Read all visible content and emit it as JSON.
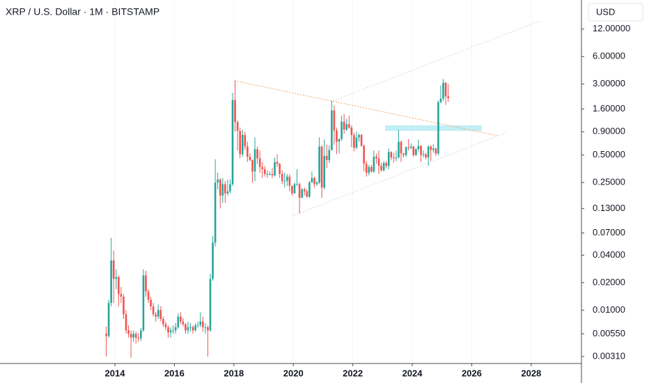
{
  "chart_data": {
    "type": "candlestick",
    "title": "XRP / U.S. Dollar · 1M · BITSTAMP",
    "currency": "USD",
    "log_scale": true,
    "up_color": "#26a69a",
    "down_color": "#ef5350",
    "xlim": [
      2010.136,
      2029.69
    ],
    "ylim": [
      0.0026,
      25
    ],
    "xticks": [
      2014,
      2016,
      2018,
      2020,
      2022,
      2024,
      2026,
      2028
    ],
    "yticks": [
      {
        "value": 12,
        "label": "12.00000"
      },
      {
        "value": 6,
        "label": "6.00000"
      },
      {
        "value": 3,
        "label": "3.00000"
      },
      {
        "value": 1.6,
        "label": "1.60000"
      },
      {
        "value": 0.9,
        "label": "0.90000"
      },
      {
        "value": 0.5,
        "label": "0.50000"
      },
      {
        "value": 0.25,
        "label": "0.25000"
      },
      {
        "value": 0.13,
        "label": "0.13000"
      },
      {
        "value": 0.07,
        "label": "0.07000"
      },
      {
        "value": 0.04,
        "label": "0.04000"
      },
      {
        "value": 0.02,
        "label": "0.02000"
      },
      {
        "value": 0.01,
        "label": "0.01000"
      },
      {
        "value": 0.0055,
        "label": "0.00550"
      },
      {
        "value": 0.0031,
        "label": "0.00310"
      }
    ],
    "x": [
      2013.708,
      2013.792,
      2013.875,
      2013.958,
      2014.042,
      2014.125,
      2014.208,
      2014.292,
      2014.375,
      2014.458,
      2014.542,
      2014.625,
      2014.708,
      2014.792,
      2014.875,
      2014.958,
      2015.042,
      2015.125,
      2015.208,
      2015.292,
      2015.375,
      2015.458,
      2015.542,
      2015.625,
      2015.708,
      2015.792,
      2015.875,
      2015.958,
      2016.042,
      2016.125,
      2016.208,
      2016.292,
      2016.375,
      2016.458,
      2016.542,
      2016.625,
      2016.708,
      2016.792,
      2016.875,
      2016.958,
      2017.042,
      2017.125,
      2017.208,
      2017.292,
      2017.375,
      2017.458,
      2017.542,
      2017.625,
      2017.708,
      2017.792,
      2017.875,
      2017.958,
      2018.042,
      2018.125,
      2018.208,
      2018.292,
      2018.375,
      2018.458,
      2018.542,
      2018.625,
      2018.708,
      2018.792,
      2018.875,
      2018.958,
      2019.042,
      2019.125,
      2019.208,
      2019.292,
      2019.375,
      2019.458,
      2019.542,
      2019.625,
      2019.708,
      2019.792,
      2019.875,
      2019.958,
      2020.042,
      2020.125,
      2020.208,
      2020.292,
      2020.375,
      2020.458,
      2020.542,
      2020.625,
      2020.708,
      2020.792,
      2020.875,
      2020.958,
      2021.042,
      2021.125,
      2021.208,
      2021.292,
      2021.375,
      2021.458,
      2021.542,
      2021.625,
      2021.708,
      2021.792,
      2021.875,
      2021.958,
      2022.042,
      2022.125,
      2022.208,
      2022.292,
      2022.375,
      2022.458,
      2022.542,
      2022.625,
      2022.708,
      2022.792,
      2022.875,
      2022.958,
      2023.042,
      2023.125,
      2023.208,
      2023.292,
      2023.375,
      2023.458,
      2023.542,
      2023.625,
      2023.708,
      2023.792,
      2023.875,
      2023.958,
      2024.042,
      2024.125,
      2024.208,
      2024.292,
      2024.375,
      2024.458,
      2024.542,
      2024.625,
      2024.708,
      2024.792,
      2024.875,
      2024.958,
      2025.042,
      2025.125,
      2025.208
    ],
    "open": [
      0.0055,
      0.0052,
      0.012,
      0.035,
      0.022,
      0.023,
      0.015,
      0.014,
      0.009,
      0.006,
      0.0055,
      0.005,
      0.0055,
      0.005,
      0.0049,
      0.006,
      0.024,
      0.016,
      0.013,
      0.011,
      0.009,
      0.0085,
      0.01,
      0.008,
      0.007,
      0.0065,
      0.0057,
      0.006,
      0.006,
      0.0065,
      0.0085,
      0.0075,
      0.007,
      0.006,
      0.0065,
      0.0065,
      0.006,
      0.0068,
      0.0069,
      0.0075,
      0.0065,
      0.0065,
      0.006,
      0.022,
      0.055,
      0.25,
      0.27,
      0.18,
      0.24,
      0.19,
      0.2,
      0.24,
      2.0,
      1.15,
      0.92,
      0.51,
      0.83,
      0.62,
      0.48,
      0.44,
      0.33,
      0.58,
      0.46,
      0.37,
      0.35,
      0.31,
      0.31,
      0.31,
      0.3,
      0.42,
      0.4,
      0.31,
      0.26,
      0.26,
      0.29,
      0.23,
      0.19,
      0.24,
      0.24,
      0.17,
      0.21,
      0.2,
      0.175,
      0.25,
      0.28,
      0.24,
      0.25,
      0.62,
      0.22,
      0.49,
      0.44,
      0.57,
      1.54,
      0.93,
      0.7,
      0.75,
      1.16,
      0.95,
      1.09,
      1.0,
      0.83,
      0.6,
      0.78,
      0.83,
      0.63,
      0.4,
      0.32,
      0.37,
      0.33,
      0.48,
      0.46,
      0.38,
      0.34,
      0.41,
      0.38,
      0.54,
      0.47,
      0.46,
      0.47,
      0.7,
      0.52,
      0.5,
      0.61,
      0.6,
      0.62,
      0.5,
      0.58,
      0.63,
      0.5,
      0.51,
      0.47,
      0.62,
      0.57,
      0.59,
      0.52,
      1.9,
      2.08,
      3.1,
      2.2
    ],
    "high": [
      0.0066,
      0.013,
      0.062,
      0.045,
      0.028,
      0.024,
      0.018,
      0.015,
      0.01,
      0.0068,
      0.006,
      0.006,
      0.0058,
      0.0056,
      0.0064,
      0.028,
      0.027,
      0.017,
      0.014,
      0.012,
      0.0095,
      0.0115,
      0.011,
      0.0085,
      0.0075,
      0.0068,
      0.0065,
      0.0068,
      0.0072,
      0.0092,
      0.0095,
      0.0082,
      0.0072,
      0.0075,
      0.0072,
      0.0068,
      0.0072,
      0.0075,
      0.0095,
      0.0085,
      0.0072,
      0.0068,
      0.025,
      0.065,
      0.45,
      0.32,
      0.28,
      0.28,
      0.26,
      0.27,
      0.27,
      2.4,
      3.3,
      1.2,
      1.0,
      0.95,
      0.9,
      0.7,
      0.52,
      0.45,
      0.78,
      0.62,
      0.56,
      0.42,
      0.38,
      0.34,
      0.33,
      0.36,
      0.47,
      0.51,
      0.41,
      0.34,
      0.32,
      0.31,
      0.31,
      0.23,
      0.25,
      0.35,
      0.25,
      0.22,
      0.22,
      0.21,
      0.26,
      0.33,
      0.29,
      0.26,
      0.78,
      0.64,
      0.74,
      0.65,
      0.64,
      1.96,
      1.75,
      1.0,
      0.76,
      1.35,
      1.41,
      1.25,
      1.35,
      1.05,
      0.88,
      0.91,
      0.86,
      0.85,
      0.65,
      0.43,
      0.39,
      0.39,
      0.56,
      0.52,
      0.56,
      0.41,
      0.43,
      0.43,
      0.59,
      0.55,
      0.53,
      0.56,
      0.94,
      0.72,
      0.53,
      0.62,
      0.75,
      0.67,
      0.63,
      0.6,
      0.74,
      0.64,
      0.56,
      0.53,
      0.64,
      0.64,
      0.66,
      0.6,
      1.98,
      2.9,
      3.4,
      3.15,
      3.0
    ],
    "low": [
      0.0031,
      0.005,
      0.011,
      0.012,
      0.017,
      0.011,
      0.012,
      0.008,
      0.0055,
      0.005,
      0.003,
      0.0045,
      0.0043,
      0.0045,
      0.0046,
      0.0058,
      0.014,
      0.012,
      0.01,
      0.0085,
      0.0075,
      0.008,
      0.0075,
      0.0065,
      0.006,
      0.005,
      0.005,
      0.0055,
      0.0055,
      0.0062,
      0.007,
      0.0066,
      0.0055,
      0.0055,
      0.0058,
      0.0055,
      0.0058,
      0.0064,
      0.0065,
      0.0058,
      0.0055,
      0.0031,
      0.0058,
      0.021,
      0.05,
      0.21,
      0.13,
      0.15,
      0.15,
      0.18,
      0.19,
      0.23,
      0.9,
      0.56,
      0.46,
      0.48,
      0.57,
      0.42,
      0.43,
      0.25,
      0.26,
      0.4,
      0.32,
      0.28,
      0.29,
      0.28,
      0.3,
      0.28,
      0.29,
      0.37,
      0.28,
      0.24,
      0.22,
      0.23,
      0.2,
      0.18,
      0.19,
      0.23,
      0.115,
      0.17,
      0.18,
      0.17,
      0.17,
      0.25,
      0.22,
      0.23,
      0.24,
      0.17,
      0.21,
      0.36,
      0.41,
      0.56,
      0.65,
      0.51,
      0.52,
      0.72,
      0.85,
      0.92,
      0.97,
      0.61,
      0.55,
      0.58,
      0.7,
      0.62,
      0.33,
      0.29,
      0.3,
      0.32,
      0.32,
      0.4,
      0.31,
      0.33,
      0.33,
      0.36,
      0.35,
      0.44,
      0.41,
      0.43,
      0.46,
      0.42,
      0.47,
      0.48,
      0.56,
      0.58,
      0.48,
      0.49,
      0.55,
      0.42,
      0.47,
      0.45,
      0.38,
      0.43,
      0.53,
      0.49,
      0.5,
      1.85,
      1.95,
      1.77,
      1.9
    ],
    "close": [
      0.0052,
      0.012,
      0.035,
      0.022,
      0.023,
      0.015,
      0.014,
      0.009,
      0.006,
      0.0055,
      0.005,
      0.0055,
      0.005,
      0.0049,
      0.006,
      0.024,
      0.016,
      0.013,
      0.011,
      0.009,
      0.0085,
      0.01,
      0.008,
      0.007,
      0.0065,
      0.0057,
      0.006,
      0.006,
      0.0065,
      0.0085,
      0.0075,
      0.007,
      0.006,
      0.0065,
      0.0065,
      0.006,
      0.0068,
      0.0069,
      0.0075,
      0.0065,
      0.0065,
      0.006,
      0.022,
      0.055,
      0.25,
      0.27,
      0.18,
      0.24,
      0.19,
      0.2,
      0.24,
      2.0,
      1.15,
      0.92,
      0.51,
      0.83,
      0.62,
      0.48,
      0.44,
      0.33,
      0.58,
      0.46,
      0.37,
      0.35,
      0.31,
      0.31,
      0.31,
      0.3,
      0.42,
      0.4,
      0.31,
      0.26,
      0.26,
      0.29,
      0.23,
      0.19,
      0.24,
      0.24,
      0.17,
      0.21,
      0.2,
      0.175,
      0.25,
      0.28,
      0.24,
      0.25,
      0.62,
      0.22,
      0.49,
      0.44,
      0.57,
      1.54,
      0.93,
      0.7,
      0.75,
      1.16,
      0.95,
      1.09,
      1.0,
      0.83,
      0.6,
      0.78,
      0.83,
      0.63,
      0.4,
      0.32,
      0.37,
      0.33,
      0.48,
      0.46,
      0.38,
      0.34,
      0.41,
      0.38,
      0.54,
      0.47,
      0.46,
      0.47,
      0.7,
      0.52,
      0.5,
      0.61,
      0.6,
      0.62,
      0.5,
      0.58,
      0.63,
      0.5,
      0.51,
      0.47,
      0.62,
      0.57,
      0.59,
      0.52,
      1.9,
      2.08,
      3.1,
      2.2,
      2.1
    ]
  }
}
